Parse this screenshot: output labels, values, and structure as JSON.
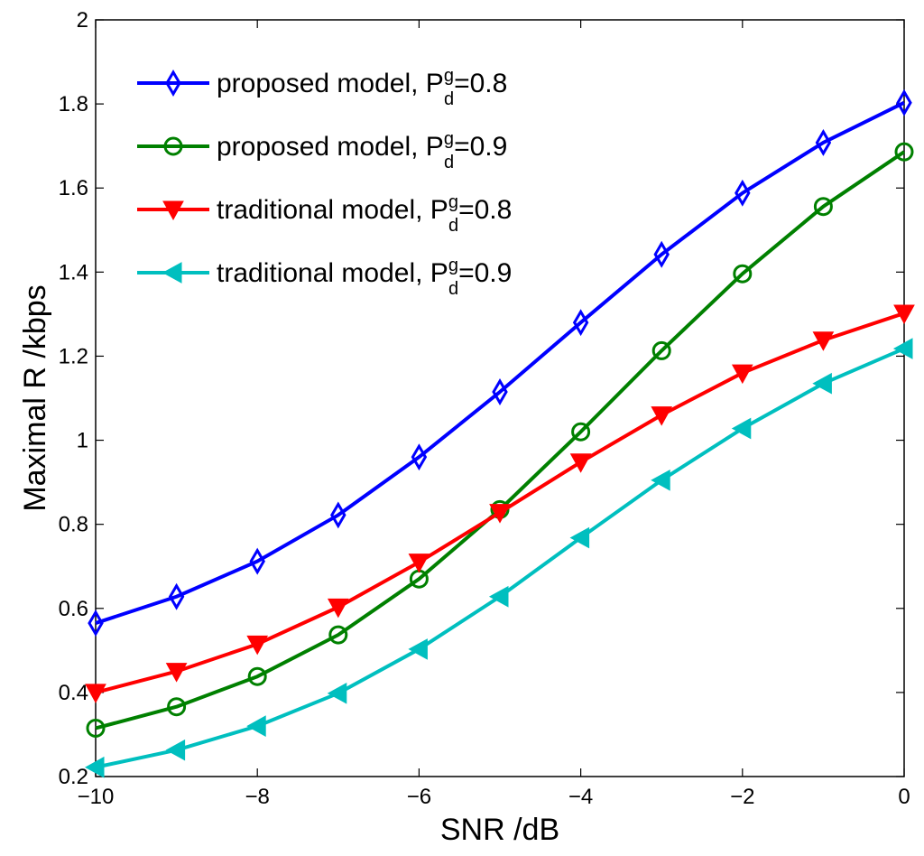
{
  "chart_data": {
    "type": "line",
    "title": "",
    "xlabel": "SNR /dB",
    "ylabel": "Maximal R /kbps",
    "xlim": [
      -10,
      0
    ],
    "ylim": [
      0.2,
      2
    ],
    "xticks": [
      -10,
      -8,
      -6,
      -4,
      -2,
      0
    ],
    "xtick_labels": [
      "−10",
      "−8",
      "−6",
      "−4",
      "−2",
      "0"
    ],
    "yticks": [
      0.2,
      0.4,
      0.6,
      0.8,
      1,
      1.2,
      1.4,
      1.6,
      1.8,
      2
    ],
    "ytick_labels": [
      "0.2",
      "0.4",
      "0.6",
      "0.8",
      "1",
      "1.2",
      "1.4",
      "1.6",
      "1.8",
      "2"
    ],
    "grid": false,
    "legend_position": "top-left",
    "x": [
      -10,
      -9,
      -8,
      -7,
      -6,
      -5,
      -4,
      -3,
      -2,
      -1,
      0
    ],
    "series": [
      {
        "name": "proposed model, P_d^g=0.8",
        "label_main": "proposed model, P",
        "label_sup": "g",
        "label_sub": "d",
        "label_tail": "=0.8",
        "color": "#0000ff",
        "marker": "diamond",
        "values": [
          0.565,
          0.628,
          0.712,
          0.822,
          0.96,
          1.115,
          1.28,
          1.442,
          1.588,
          1.708,
          1.803
        ]
      },
      {
        "name": "proposed model, P_d^g=0.9",
        "label_main": "proposed model, P",
        "label_sup": "g",
        "label_sub": "d",
        "label_tail": "=0.9",
        "color": "#008000",
        "marker": "circle",
        "values": [
          0.315,
          0.366,
          0.438,
          0.537,
          0.67,
          0.835,
          1.02,
          1.213,
          1.396,
          1.556,
          1.686
        ]
      },
      {
        "name": "traditional model, P_d^g=0.8",
        "label_main": "traditional model, P",
        "label_sup": "g",
        "label_sub": "d",
        "label_tail": "=0.8",
        "color": "#ff0000",
        "marker": "triangle-down",
        "values": [
          0.4,
          0.45,
          0.515,
          0.603,
          0.71,
          0.828,
          0.948,
          1.06,
          1.16,
          1.238,
          1.302
        ]
      },
      {
        "name": "traditional model, P_d^g=0.9",
        "label_main": "traditional model, P",
        "label_sup": "g",
        "label_sub": "d",
        "label_tail": "=0.9",
        "color": "#00bfbf",
        "marker": "triangle-left",
        "values": [
          0.222,
          0.263,
          0.32,
          0.398,
          0.503,
          0.628,
          0.768,
          0.905,
          1.028,
          1.135,
          1.218
        ]
      }
    ]
  }
}
